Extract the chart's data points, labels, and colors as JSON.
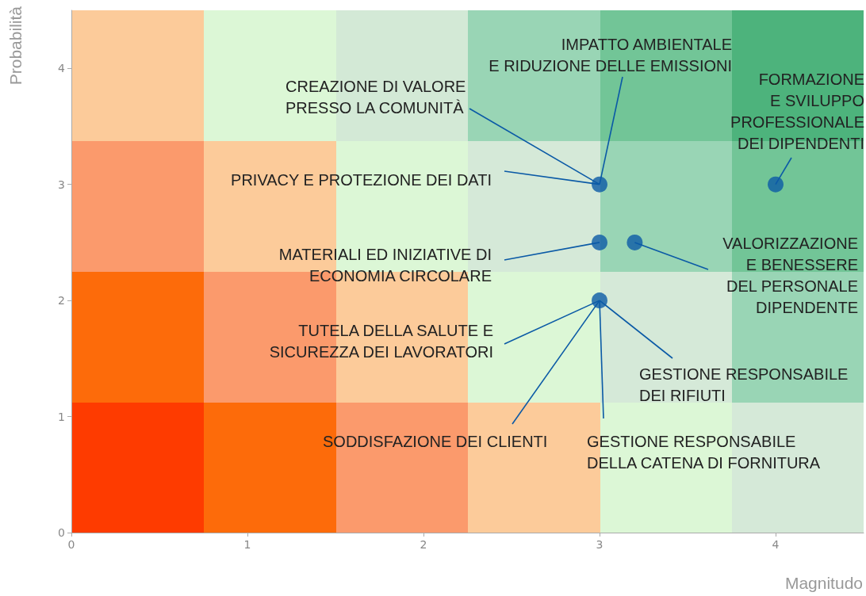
{
  "chart_data": {
    "type": "scatter",
    "xlabel": "Magnitudo",
    "ylabel": "Probabilità",
    "x": [
      3,
      3,
      3.2,
      3,
      4
    ],
    "values": [
      3,
      2.5,
      2.5,
      2,
      3
    ],
    "color": "#0b5aa6",
    "marker": "circle",
    "xlim": [
      0,
      4.5
    ],
    "ylim": [
      0,
      4.5
    ],
    "xticks": [
      0,
      1,
      2,
      3,
      4
    ],
    "yticks": [
      0,
      1,
      2,
      3,
      4
    ],
    "grid": false,
    "annotations": [
      {
        "text": "CREAZIONE DI VALORE\nPRESSO LA COMUNITÀ",
        "x": 3,
        "y": 3
      },
      {
        "text": "IMPATTO AMBIENTALE\nE RIDUZIONE DELLE EMISSIONI",
        "x": 3,
        "y": 3
      },
      {
        "text": "FORMAZIONE\nE SVILUPPO\nPROFESSIONALE\nDEI DIPENDENTI",
        "x": 4,
        "y": 3
      },
      {
        "text": "PRIVACY E PROTEZIONE DEI DATI",
        "x": 3,
        "y": 3
      },
      {
        "text": "MATERIALI ED INIZIATIVE DI\nECONOMIA CIRCOLARE",
        "x": 3,
        "y": 2.5
      },
      {
        "text": "VALORIZZAZIONE\nE BENESSERE\nDEL PERSONALE\nDIPENDENTE",
        "x": 3.2,
        "y": 2.5
      },
      {
        "text": "TUTELA DELLA SALUTE E\nSICUREZZA DEI LAVORATORI",
        "x": 3,
        "y": 2
      },
      {
        "text": "GESTIONE RESPONSABILE\nDEI RIFIUTI",
        "x": 3,
        "y": 2
      },
      {
        "text": "SODDISFAZIONE DEI CLIENTI",
        "x": 3,
        "y": 2
      },
      {
        "text": "GESTIONE RESPONSABILE\nDELLA CATENA DI FORNITURA",
        "x": 3,
        "y": 2
      }
    ]
  }
}
